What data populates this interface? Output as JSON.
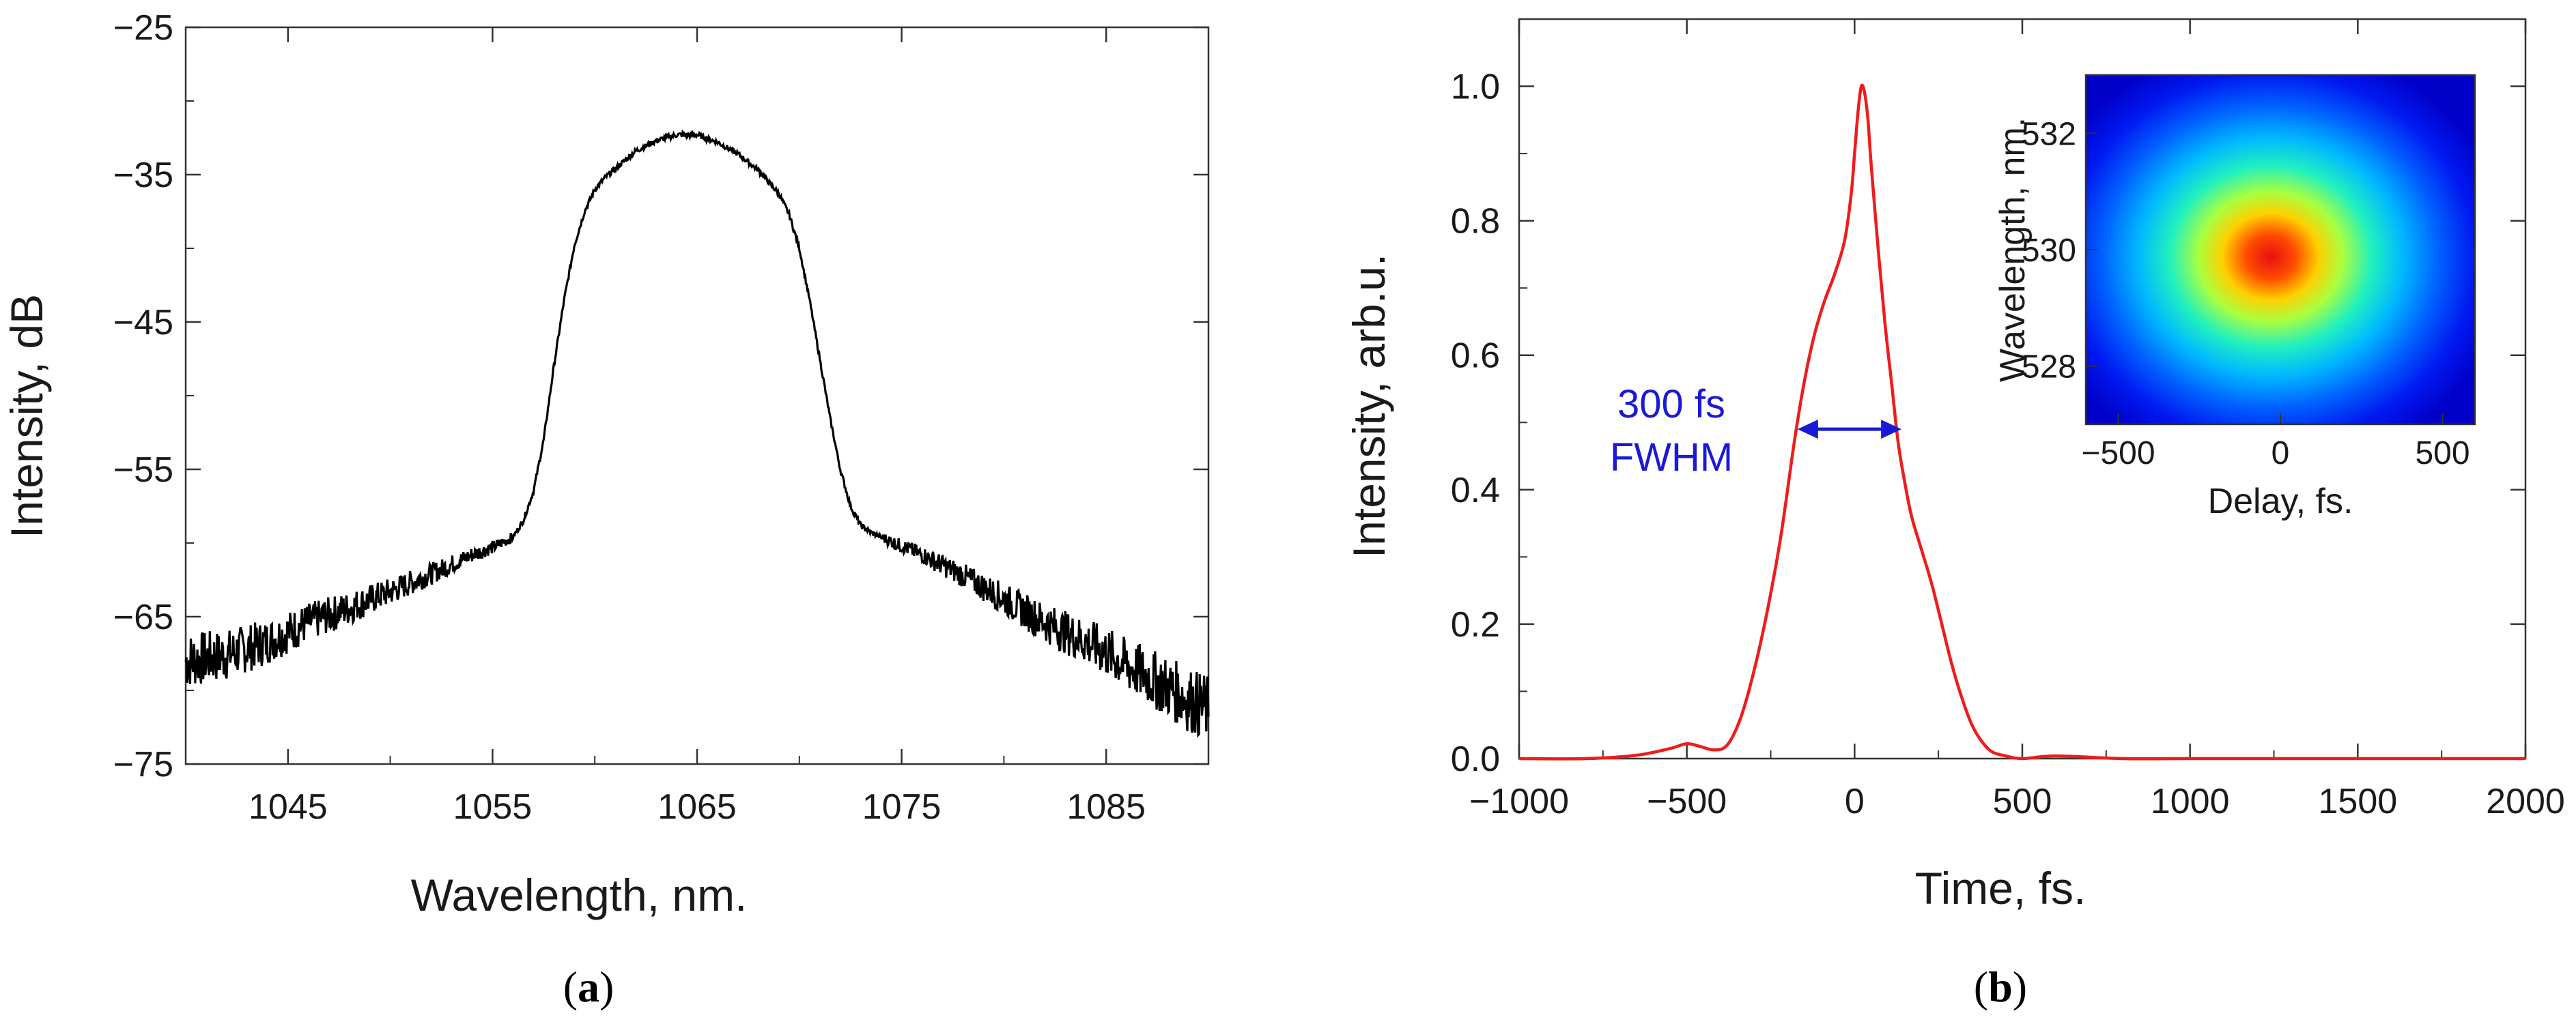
{
  "chart_data": [
    {
      "panel_label": "a",
      "type": "line",
      "title": "",
      "xlabel": "Wavelength, nm.",
      "ylabel": "Intensity, dB",
      "xlim": [
        1040,
        1090
      ],
      "ylim": [
        -75,
        -25
      ],
      "xticks": [
        1045,
        1055,
        1065,
        1075,
        1085
      ],
      "yticks": [
        -25,
        -35,
        -45,
        -55,
        -65,
        -75
      ],
      "grid": false,
      "series": [
        {
          "color": "#000000",
          "x": [
            1040,
            1042,
            1044,
            1046,
            1048,
            1050,
            1052,
            1054,
            1055,
            1056,
            1056.5,
            1057,
            1057.5,
            1058,
            1058.5,
            1059,
            1059.5,
            1060,
            1060.5,
            1061,
            1062,
            1063,
            1064,
            1065,
            1066,
            1067,
            1068,
            1069,
            1069.5,
            1070,
            1070.5,
            1071,
            1071.5,
            1072,
            1072.5,
            1073,
            1073.5,
            1074,
            1076,
            1078,
            1080,
            1082,
            1084,
            1085,
            1086,
            1087,
            1088,
            1089,
            1090
          ],
          "y": [
            -68.0,
            -67.6,
            -66.7,
            -65.4,
            -64.4,
            -63.3,
            -62.1,
            -60.8,
            -60.3,
            -59.6,
            -58.5,
            -56.5,
            -53.0,
            -48.0,
            -43.5,
            -39.8,
            -37.5,
            -36.0,
            -35.2,
            -34.6,
            -33.4,
            -32.7,
            -32.3,
            -32.3,
            -32.8,
            -33.6,
            -34.7,
            -36.3,
            -37.7,
            -40.0,
            -43.5,
            -47.5,
            -51.5,
            -55.0,
            -57.5,
            -58.8,
            -59.3,
            -59.6,
            -60.8,
            -62.2,
            -63.8,
            -65.4,
            -66.7,
            -67.4,
            -68.3,
            -69.0,
            -69.8,
            -70.6,
            -71.3
          ]
        }
      ]
    },
    {
      "panel_label": "b",
      "type": "line",
      "title": "",
      "xlabel": "Time, fs.",
      "ylabel": "Intensity, arb.u.",
      "xlim": [
        -1000,
        2000
      ],
      "ylim": [
        0.0,
        1.1
      ],
      "xticks": [
        -1000,
        -500,
        0,
        500,
        1000,
        1500,
        2000
      ],
      "yticks": [
        0.0,
        0.2,
        0.4,
        0.6,
        0.8,
        1.0
      ],
      "grid": false,
      "annotation": {
        "lines": [
          "300 fs",
          "FWHM"
        ],
        "color": "#1a1ad6",
        "arrow_y": 0.49,
        "arrow_x": [
          -170,
          140
        ]
      },
      "series": [
        {
          "color": "#ee1c1c",
          "x": [
            -1000,
            -800,
            -650,
            -550,
            -500,
            -460,
            -420,
            -380,
            -340,
            -300,
            -260,
            -220,
            -180,
            -150,
            -120,
            -90,
            -60,
            -30,
            -10,
            0,
            10,
            20,
            30,
            40,
            50,
            70,
            90,
            110,
            130,
            150,
            170,
            200,
            230,
            260,
            290,
            320,
            350,
            380,
            410,
            450,
            500,
            600,
            800,
            1000,
            1500,
            2000
          ],
          "y": [
            0.0,
            0.0,
            0.005,
            0.015,
            0.022,
            0.018,
            0.013,
            0.02,
            0.06,
            0.13,
            0.22,
            0.33,
            0.47,
            0.56,
            0.63,
            0.68,
            0.72,
            0.77,
            0.84,
            0.9,
            0.96,
            1.0,
            0.99,
            0.95,
            0.88,
            0.76,
            0.65,
            0.56,
            0.47,
            0.41,
            0.36,
            0.31,
            0.26,
            0.2,
            0.14,
            0.09,
            0.05,
            0.025,
            0.01,
            0.004,
            0.0,
            0.004,
            0.0,
            0.0,
            0.0,
            0.0
          ]
        }
      ],
      "inset": {
        "type": "heatmap",
        "xlabel": "Delay, fs.",
        "ylabel": "Wavelength, nm.",
        "xlim": [
          -600,
          600
        ],
        "ylim": [
          527,
          533
        ],
        "xticks": [
          -500,
          0,
          500
        ],
        "yticks": [
          528,
          530,
          532
        ],
        "peak": {
          "delay": -30,
          "wavelength": 529.8
        },
        "colorscale": [
          "#00008f",
          "#0000ff",
          "#0080ff",
          "#00ffff",
          "#80ff80",
          "#ffff00",
          "#ff8000",
          "#ff0000"
        ]
      }
    }
  ]
}
